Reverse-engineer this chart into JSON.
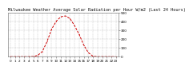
{
  "title": "Milwaukee Weather Average Solar Radiation per Hour W/m2 (Last 24 Hours)",
  "hours": [
    0,
    1,
    2,
    3,
    4,
    5,
    6,
    7,
    8,
    9,
    10,
    11,
    12,
    13,
    14,
    15,
    16,
    17,
    18,
    19,
    20,
    21,
    22,
    23
  ],
  "values": [
    0,
    0,
    0,
    0,
    0,
    2,
    15,
    60,
    170,
    310,
    400,
    450,
    460,
    430,
    350,
    250,
    130,
    45,
    5,
    0,
    0,
    0,
    0,
    0
  ],
  "line_color": "#cc0000",
  "bg_color": "#ffffff",
  "plot_bg": "#ffffff",
  "grid_color": "#aaaaaa",
  "ylim": [
    0,
    500
  ],
  "yticks": [
    0,
    100,
    200,
    300,
    400,
    500
  ],
  "title_fontsize": 3.8,
  "tick_fontsize": 3.0
}
